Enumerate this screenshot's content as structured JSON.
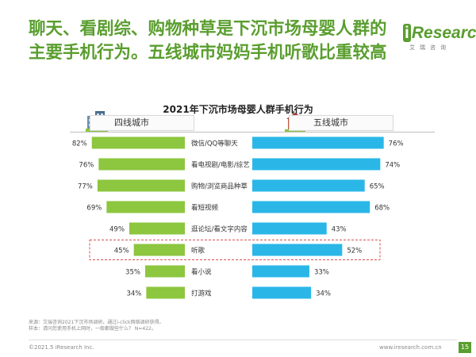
{
  "headline": "聊天、看剧综、购物种草是下沉市场母婴人群的主要手机行为。五线城市妈妈手机听歌比重较高",
  "brand": {
    "name_initial": "i",
    "name_rest": "Research",
    "sub": "艾瑞咨询"
  },
  "colors": {
    "left_bar": "#8dc63f",
    "right_bar": "#2ab7e8",
    "headline": "#5a9e2f",
    "highlight_border": "#d9534f"
  },
  "legend": {
    "left": "四线城市",
    "right": "五线城市"
  },
  "chart_data": {
    "type": "bar",
    "title": "2021年下沉市场母婴人群手机行为",
    "categories": [
      "微信/QQ等聊天",
      "看电视剧/电影/综艺",
      "购物/浏览商品种草",
      "看短视频",
      "逛论坛/看文字内容",
      "听歌",
      "看小说",
      "打游戏"
    ],
    "series": [
      {
        "name": "四线城市",
        "values": [
          82,
          76,
          77,
          69,
          49,
          45,
          35,
          34
        ]
      },
      {
        "name": "五线城市",
        "values": [
          76,
          74,
          65,
          68,
          43,
          52,
          33,
          34
        ]
      }
    ],
    "highlight": "听歌",
    "ylim": [
      0,
      100
    ]
  },
  "footer": {
    "source": "来源：艾瑞咨询2021下沉市场调研，通过i-click网络调研获得。",
    "sample": "样本：请问您使用手机上网时，一般都做些什么？ N=422。",
    "copyright": "©2021.5 iResearch Inc.",
    "site": "www.iresearch.com.cn",
    "page": "15"
  }
}
